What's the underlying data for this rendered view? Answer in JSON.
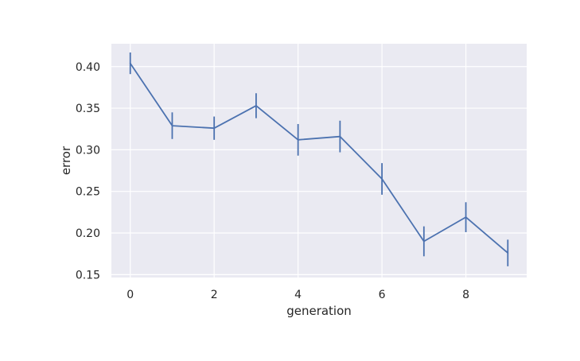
{
  "chart_data": {
    "type": "line",
    "title": "",
    "xlabel": "generation",
    "ylabel": "error",
    "xlim": [
      -0.45,
      9.45
    ],
    "ylim": [
      0.1465,
      0.4275
    ],
    "xticks": [
      0,
      2,
      4,
      6,
      8
    ],
    "xtick_labels": [
      "0",
      "2",
      "4",
      "6",
      "8"
    ],
    "yticks": [
      0.15,
      0.2,
      0.25,
      0.3,
      0.35,
      0.4
    ],
    "ytick_labels": [
      "0.15",
      "0.20",
      "0.25",
      "0.30",
      "0.35",
      "0.40"
    ],
    "grid": true,
    "series": [
      {
        "x": [
          0,
          1,
          2,
          3,
          4,
          5,
          6,
          7,
          8,
          9
        ],
        "values": [
          0.404,
          0.329,
          0.326,
          0.353,
          0.312,
          0.316,
          0.265,
          0.19,
          0.219,
          0.176
        ],
        "error": [
          0.013,
          0.016,
          0.014,
          0.015,
          0.019,
          0.019,
          0.019,
          0.018,
          0.018,
          0.016
        ]
      }
    ]
  },
  "colors": {
    "plot_background": "#eaeaf2",
    "grid": "#ffffff",
    "line": "#4c72b0",
    "text": "#262626"
  }
}
